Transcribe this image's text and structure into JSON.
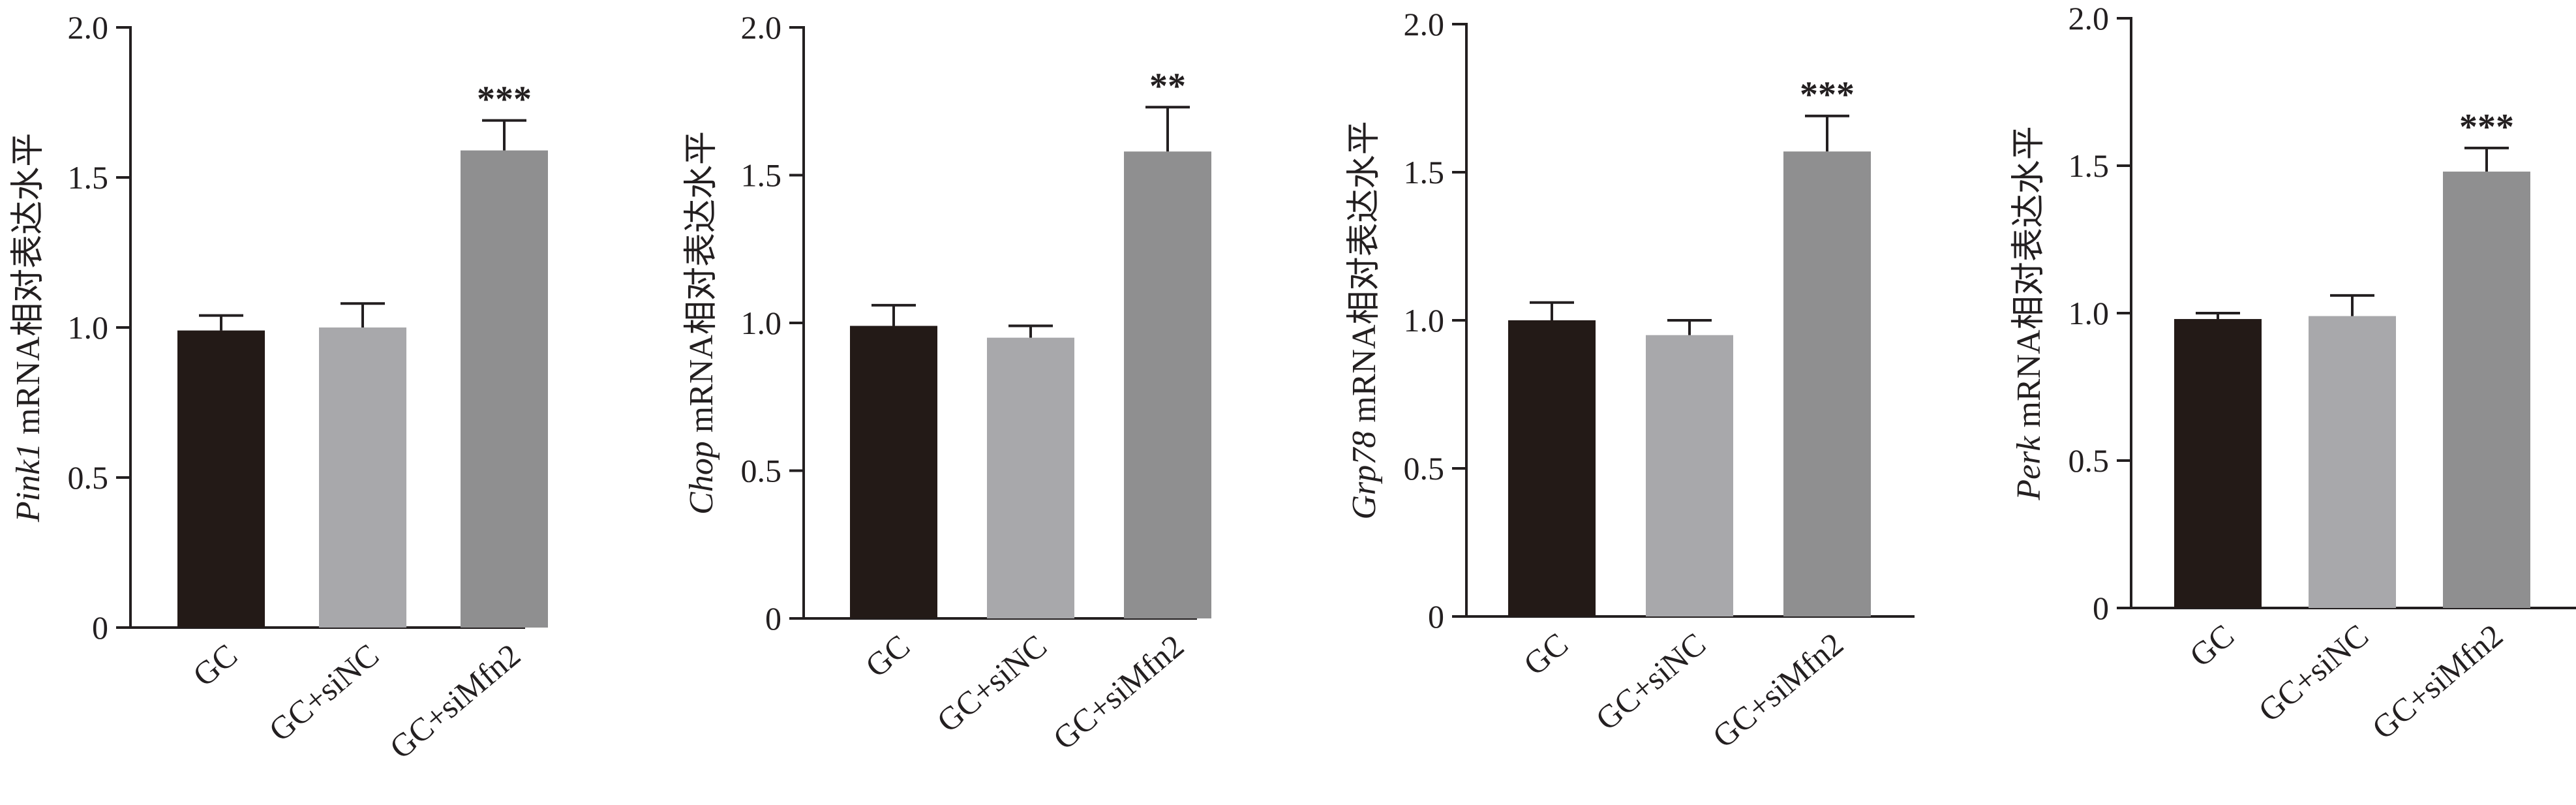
{
  "chart_data": [
    {
      "type": "bar",
      "gene": "Pink1",
      "ylabel_suffix": " mRNA相对表达水平",
      "categories": [
        "GC",
        "GC+siNC",
        "GC+siMfn2"
      ],
      "values": [
        0.99,
        1.0,
        1.59
      ],
      "errors": [
        0.05,
        0.08,
        0.1
      ],
      "significance": [
        "",
        "",
        "***"
      ],
      "ylim": [
        0,
        2.0
      ],
      "yticks": [
        "0",
        "0.5",
        "1.0",
        "1.5",
        "2.0"
      ],
      "ytick_values": [
        0,
        0.5,
        1.0,
        1.5,
        2.0
      ],
      "colors": [
        "#231a17",
        "#a8a8ab",
        "#8f8f90"
      ]
    },
    {
      "type": "bar",
      "gene": "Chop",
      "ylabel_suffix": " mRNA相对表达水平",
      "categories": [
        "GC",
        "GC+siNC",
        "GC+siMfn2"
      ],
      "values": [
        0.99,
        0.95,
        1.58
      ],
      "errors": [
        0.07,
        0.04,
        0.15
      ],
      "significance": [
        "",
        "",
        "**"
      ],
      "ylim": [
        0,
        2.0
      ],
      "yticks": [
        "0",
        "0.5",
        "1.0",
        "1.5",
        "2.0"
      ],
      "ytick_values": [
        0,
        0.5,
        1.0,
        1.5,
        2.0
      ],
      "colors": [
        "#231a17",
        "#a8a8ab",
        "#8f8f90"
      ]
    },
    {
      "type": "bar",
      "gene": "Grp78",
      "ylabel_suffix": " mRNA相对表达水平",
      "categories": [
        "GC",
        "GC+siNC",
        "GC+siMfn2"
      ],
      "values": [
        1.0,
        0.95,
        1.57
      ],
      "errors": [
        0.06,
        0.05,
        0.12
      ],
      "significance": [
        "",
        "",
        "***"
      ],
      "ylim": [
        0,
        2.0
      ],
      "yticks": [
        "0",
        "0.5",
        "1.0",
        "1.5",
        "2.0"
      ],
      "ytick_values": [
        0,
        0.5,
        1.0,
        1.5,
        2.0
      ],
      "colors": [
        "#231a17",
        "#a8a8ab",
        "#8f8f90"
      ]
    },
    {
      "type": "bar",
      "gene": "Perk",
      "ylabel_suffix": " mRNA相对表达水平",
      "categories": [
        "GC",
        "GC+siNC",
        "GC+siMfn2"
      ],
      "values": [
        0.98,
        0.99,
        1.48
      ],
      "errors": [
        0.02,
        0.07,
        0.08
      ],
      "significance": [
        "",
        "",
        "***"
      ],
      "ylim": [
        0,
        2.0
      ],
      "yticks": [
        "0",
        "0.5",
        "1.0",
        "1.5",
        "2.0"
      ],
      "ytick_values": [
        0,
        0.5,
        1.0,
        1.5,
        2.0
      ],
      "colors": [
        "#231a17",
        "#a8a8ab",
        "#8f8f90"
      ]
    }
  ]
}
